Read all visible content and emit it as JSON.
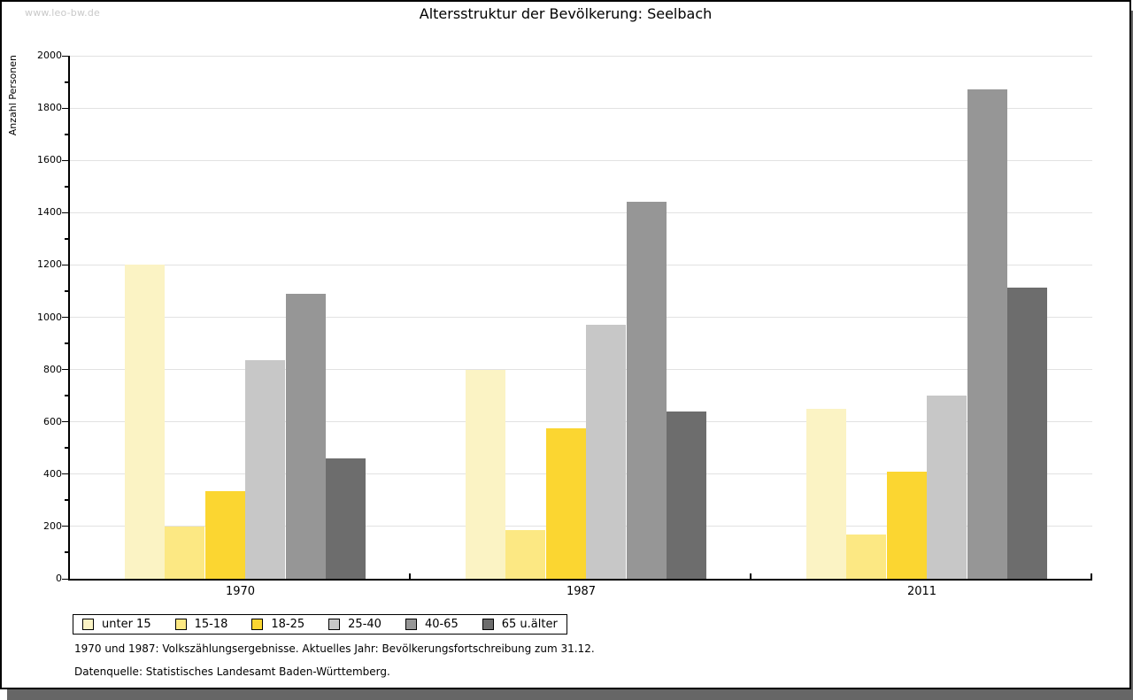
{
  "page": {
    "watermark": "www.leo-bw.de",
    "title": "Altersstruktur der Bevölkerung: Seelbach",
    "footnote1": "1970 und 1987: Volkszählungsergebnisse. Aktuelles Jahr: Bevölkerungsfortschreibung zum 31.12.",
    "footnote2": "Datenquelle: Statistisches Landesamt Baden-Württemberg."
  },
  "chart_data": {
    "type": "bar",
    "title": "Altersstruktur der Bevölkerung: Seelbach",
    "xlabel": "",
    "ylabel": "Anzahl Personen",
    "categories": [
      "1970",
      "1987",
      "2011"
    ],
    "series": [
      {
        "name": "unter 15",
        "color": "#FBF3C4",
        "values": [
          1200,
          800,
          650
        ]
      },
      {
        "name": "15-18",
        "color": "#FCE883",
        "values": [
          200,
          185,
          170
        ]
      },
      {
        "name": "18-25",
        "color": "#FBD631",
        "values": [
          335,
          575,
          410
        ]
      },
      {
        "name": "25-40",
        "color": "#C7C7C7",
        "values": [
          835,
          970,
          700
        ]
      },
      {
        "name": "40-65",
        "color": "#969696",
        "values": [
          1090,
          1440,
          1870
        ]
      },
      {
        "name": "65 u.älter",
        "color": "#6D6D6D",
        "values": [
          460,
          640,
          1115
        ]
      }
    ],
    "ylim": [
      0,
      2000
    ],
    "y_major_step": 200,
    "y_minor_step": 100,
    "y_ticks": [
      0,
      200,
      400,
      600,
      800,
      1000,
      1200,
      1400,
      1600,
      1800,
      2000
    ],
    "grid": "horizontal-major",
    "legend_position": "bottom-left",
    "colors": {
      "axis": "#000000",
      "gridline": "#e2e2e2",
      "page_shadow": "#666666",
      "watermark": "#c9c9c9"
    }
  }
}
